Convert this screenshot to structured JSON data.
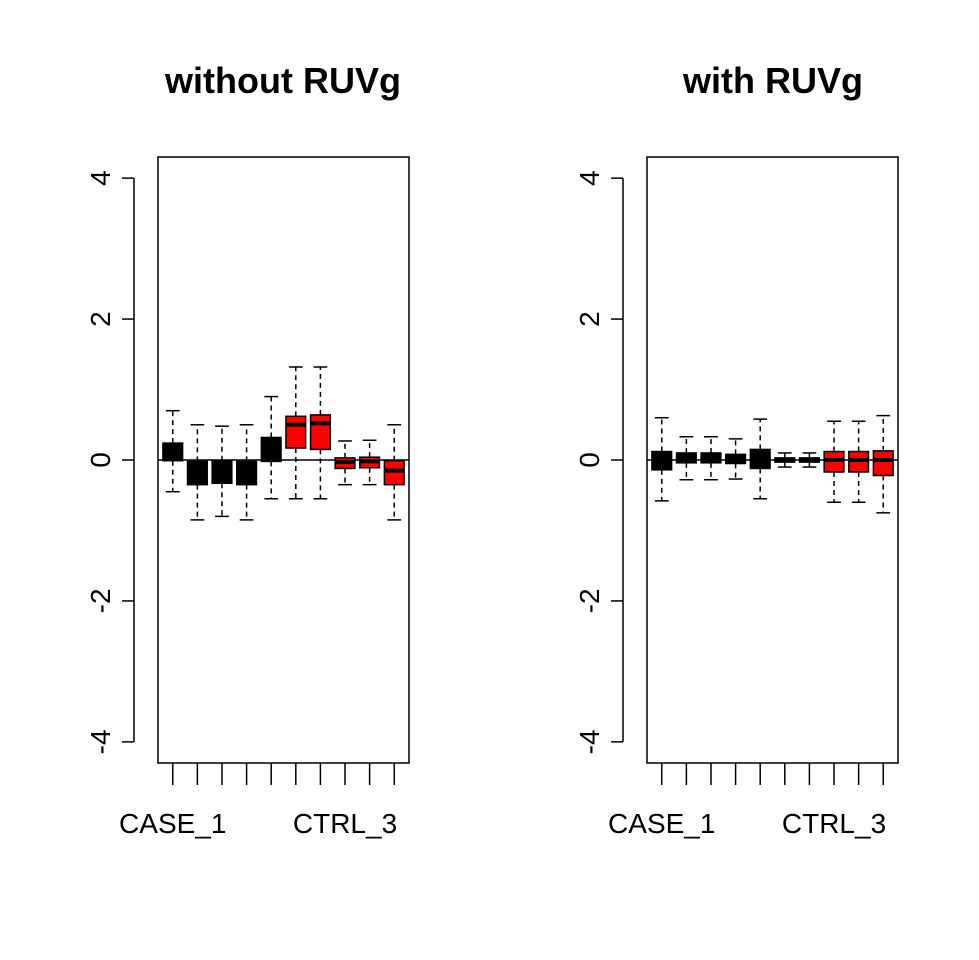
{
  "chart_data": [
    {
      "type": "boxplot",
      "title": "without RUVg",
      "xlabel": "",
      "ylabel": "",
      "ylim": [
        -4.3,
        4.3
      ],
      "yticks": [
        -4,
        -2,
        0,
        2,
        4
      ],
      "reference_line": 0,
      "categories": [
        "CASE_1",
        "",
        "",
        "",
        "",
        "",
        "",
        "CTRL_3",
        "",
        ""
      ],
      "x_tick_labels_shown": [
        "CASE_1",
        "CTRL_3"
      ],
      "x_tick_label_positions": [
        1,
        8
      ],
      "colors": [
        "#000000",
        "#000000",
        "#000000",
        "#000000",
        "#000000",
        "#ff0000",
        "#ff0000",
        "#ff0000",
        "#ff0000",
        "#ff0000"
      ],
      "boxes": [
        {
          "min": -0.45,
          "q1": -0.01,
          "median": 0.12,
          "q3": 0.24,
          "max": 0.7
        },
        {
          "min": -0.85,
          "q1": -0.35,
          "median": -0.2,
          "q3": -0.02,
          "max": 0.5
        },
        {
          "min": -0.8,
          "q1": -0.33,
          "median": -0.18,
          "q3": -0.01,
          "max": 0.48
        },
        {
          "min": -0.85,
          "q1": -0.35,
          "median": -0.2,
          "q3": -0.02,
          "max": 0.5
        },
        {
          "min": -0.55,
          "q1": -0.02,
          "median": 0.15,
          "q3": 0.32,
          "max": 0.9
        },
        {
          "min": -0.55,
          "q1": 0.17,
          "median": 0.5,
          "q3": 0.62,
          "max": 1.32
        },
        {
          "min": -0.55,
          "q1": 0.15,
          "median": 0.52,
          "q3": 0.64,
          "max": 1.32
        },
        {
          "min": -0.35,
          "q1": -0.12,
          "median": -0.03,
          "q3": 0.03,
          "max": 0.27
        },
        {
          "min": -0.35,
          "q1": -0.11,
          "median": -0.02,
          "q3": 0.04,
          "max": 0.28
        },
        {
          "min": -0.85,
          "q1": -0.35,
          "median": -0.15,
          "q3": -0.01,
          "max": 0.5
        }
      ]
    },
    {
      "type": "boxplot",
      "title": "with RUVg",
      "xlabel": "",
      "ylabel": "",
      "ylim": [
        -4.3,
        4.3
      ],
      "yticks": [
        -4,
        -2,
        0,
        2,
        4
      ],
      "reference_line": 0,
      "categories": [
        "CASE_1",
        "",
        "",
        "",
        "",
        "",
        "",
        "CTRL_3",
        "",
        ""
      ],
      "x_tick_labels_shown": [
        "CASE_1",
        "CTRL_3"
      ],
      "x_tick_label_positions": [
        1,
        8
      ],
      "colors": [
        "#000000",
        "#000000",
        "#000000",
        "#000000",
        "#000000",
        "#ff0000",
        "#ff0000",
        "#ff0000",
        "#ff0000",
        "#ff0000"
      ],
      "boxes": [
        {
          "min": -0.58,
          "q1": -0.14,
          "median": 0.0,
          "q3": 0.12,
          "max": 0.6
        },
        {
          "min": -0.28,
          "q1": -0.04,
          "median": 0.03,
          "q3": 0.1,
          "max": 0.33
        },
        {
          "min": -0.28,
          "q1": -0.04,
          "median": 0.02,
          "q3": 0.1,
          "max": 0.33
        },
        {
          "min": -0.27,
          "q1": -0.05,
          "median": 0.0,
          "q3": 0.08,
          "max": 0.3
        },
        {
          "min": -0.55,
          "q1": -0.12,
          "median": 0.0,
          "q3": 0.15,
          "max": 0.58
        },
        {
          "min": -0.1,
          "q1": -0.03,
          "median": 0.0,
          "q3": 0.03,
          "max": 0.1
        },
        {
          "min": -0.1,
          "q1": -0.03,
          "median": 0.0,
          "q3": 0.03,
          "max": 0.1
        },
        {
          "min": -0.6,
          "q1": -0.17,
          "median": 0.0,
          "q3": 0.12,
          "max": 0.55
        },
        {
          "min": -0.6,
          "q1": -0.17,
          "median": 0.0,
          "q3": 0.12,
          "max": 0.55
        },
        {
          "min": -0.75,
          "q1": -0.22,
          "median": 0.0,
          "q3": 0.13,
          "max": 0.63
        }
      ]
    }
  ]
}
